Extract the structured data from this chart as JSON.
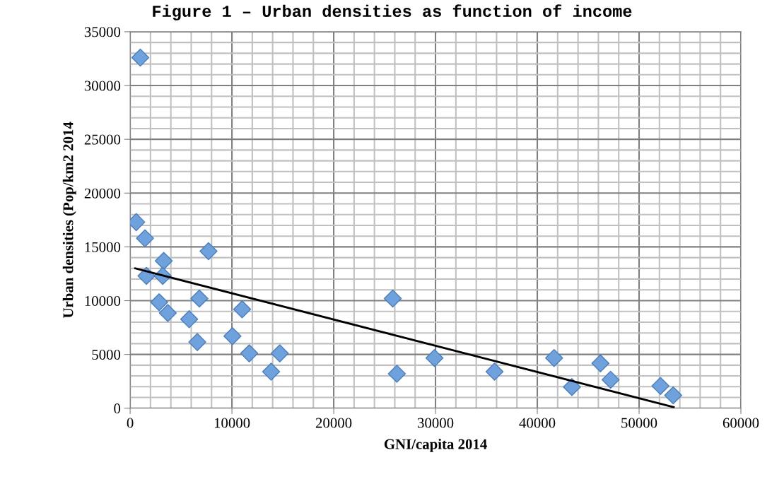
{
  "chart_data": {
    "type": "scatter",
    "title": "Figure 1 – Urban densities as function of income",
    "xlabel": "GNI/capita 2014",
    "ylabel": "Urban densities (Pop/km2 2014",
    "xlim": [
      0,
      60000
    ],
    "ylim": [
      0,
      35000
    ],
    "xticks": [
      0,
      10000,
      20000,
      30000,
      40000,
      50000,
      60000
    ],
    "yticks": [
      0,
      5000,
      10000,
      15000,
      20000,
      25000,
      30000,
      35000
    ],
    "grid": true,
    "legend": false,
    "marker": "diamond",
    "series": [
      {
        "color": "#6fa1dc",
        "x": [
          1000,
          600,
          1460,
          3300,
          1600,
          3200,
          7700,
          2850,
          6800,
          3700,
          5800,
          11000,
          6600,
          10050,
          11700,
          14700,
          13850,
          25800,
          26200,
          29900,
          35800,
          41650,
          43400,
          46200,
          47200,
          52100,
          53350
        ],
        "values": [
          32600,
          17300,
          15800,
          13700,
          12300,
          12300,
          14600,
          9850,
          10200,
          8850,
          8270,
          9200,
          6150,
          6700,
          5100,
          5100,
          3400,
          10200,
          3200,
          4670,
          3400,
          4670,
          1970,
          4170,
          2650,
          2070,
          1200
        ]
      },
      {
        "type": "line",
        "color": "#000000",
        "marker": "none",
        "line_style": "solid",
        "x": [
          500,
          53400
        ],
        "values": [
          13000,
          100
        ]
      }
    ]
  }
}
